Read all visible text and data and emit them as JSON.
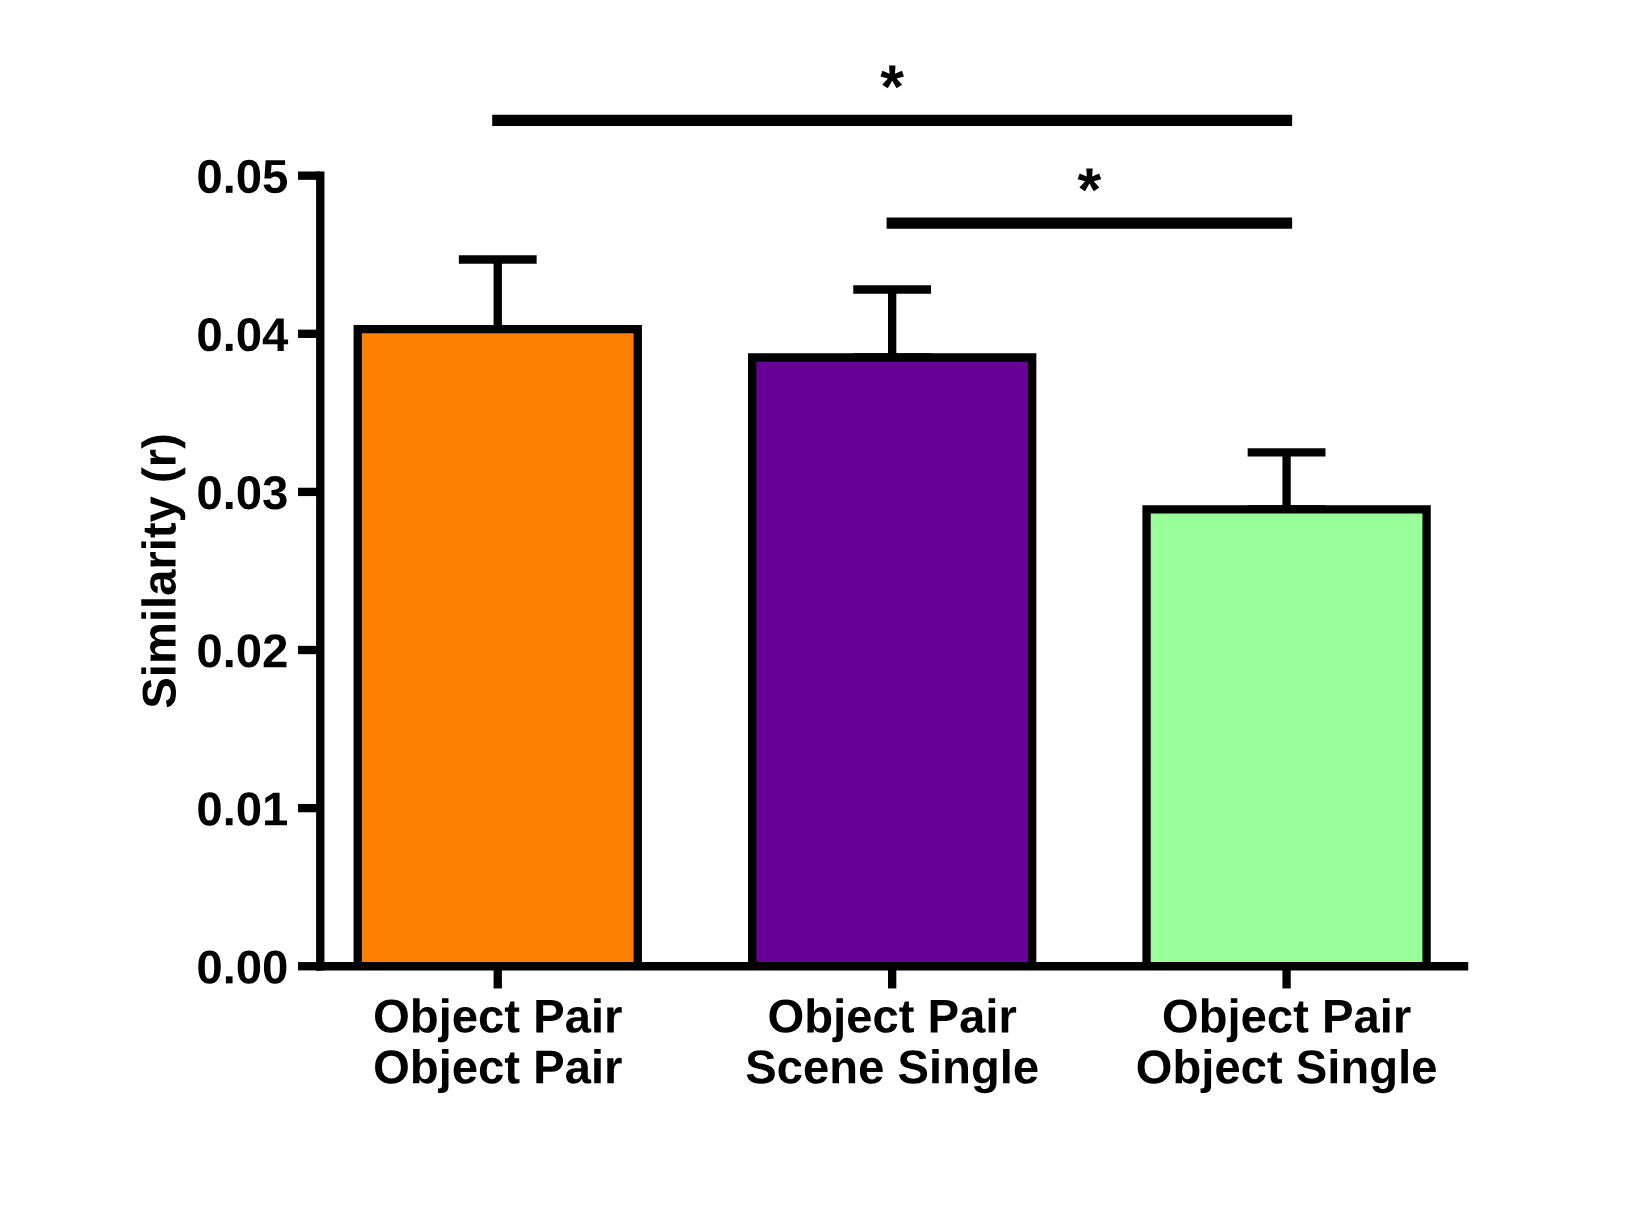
{
  "chart_data": {
    "type": "bar",
    "ylabel": "Similarity (r)",
    "categories": [
      "Object Pair\nObject Pair",
      "Object Pair\nScene Single",
      "Object Pair\nObject Single"
    ],
    "values": [
      0.0403,
      0.0385,
      0.0289
    ],
    "colors": [
      "#ff8000",
      "#660099",
      "#99ff99"
    ],
    "errors": [
      [
        0.0403,
        0.0447
      ],
      [
        0.0385,
        0.0428
      ],
      [
        0.0289,
        0.0325
      ]
    ],
    "ylim": [
      0,
      0.05
    ],
    "yticks": [
      {
        "value": 0,
        "label": "0.00"
      },
      {
        "value": 0.01,
        "label": "0.01"
      },
      {
        "value": 0.02,
        "label": "0.02"
      },
      {
        "value": 0.03,
        "label": "0.03"
      },
      {
        "value": 0.04,
        "label": "0.04"
      },
      {
        "value": 0.05,
        "label": "0.05"
      }
    ],
    "grid": false,
    "annotations": [
      "*",
      "*"
    ]
  }
}
